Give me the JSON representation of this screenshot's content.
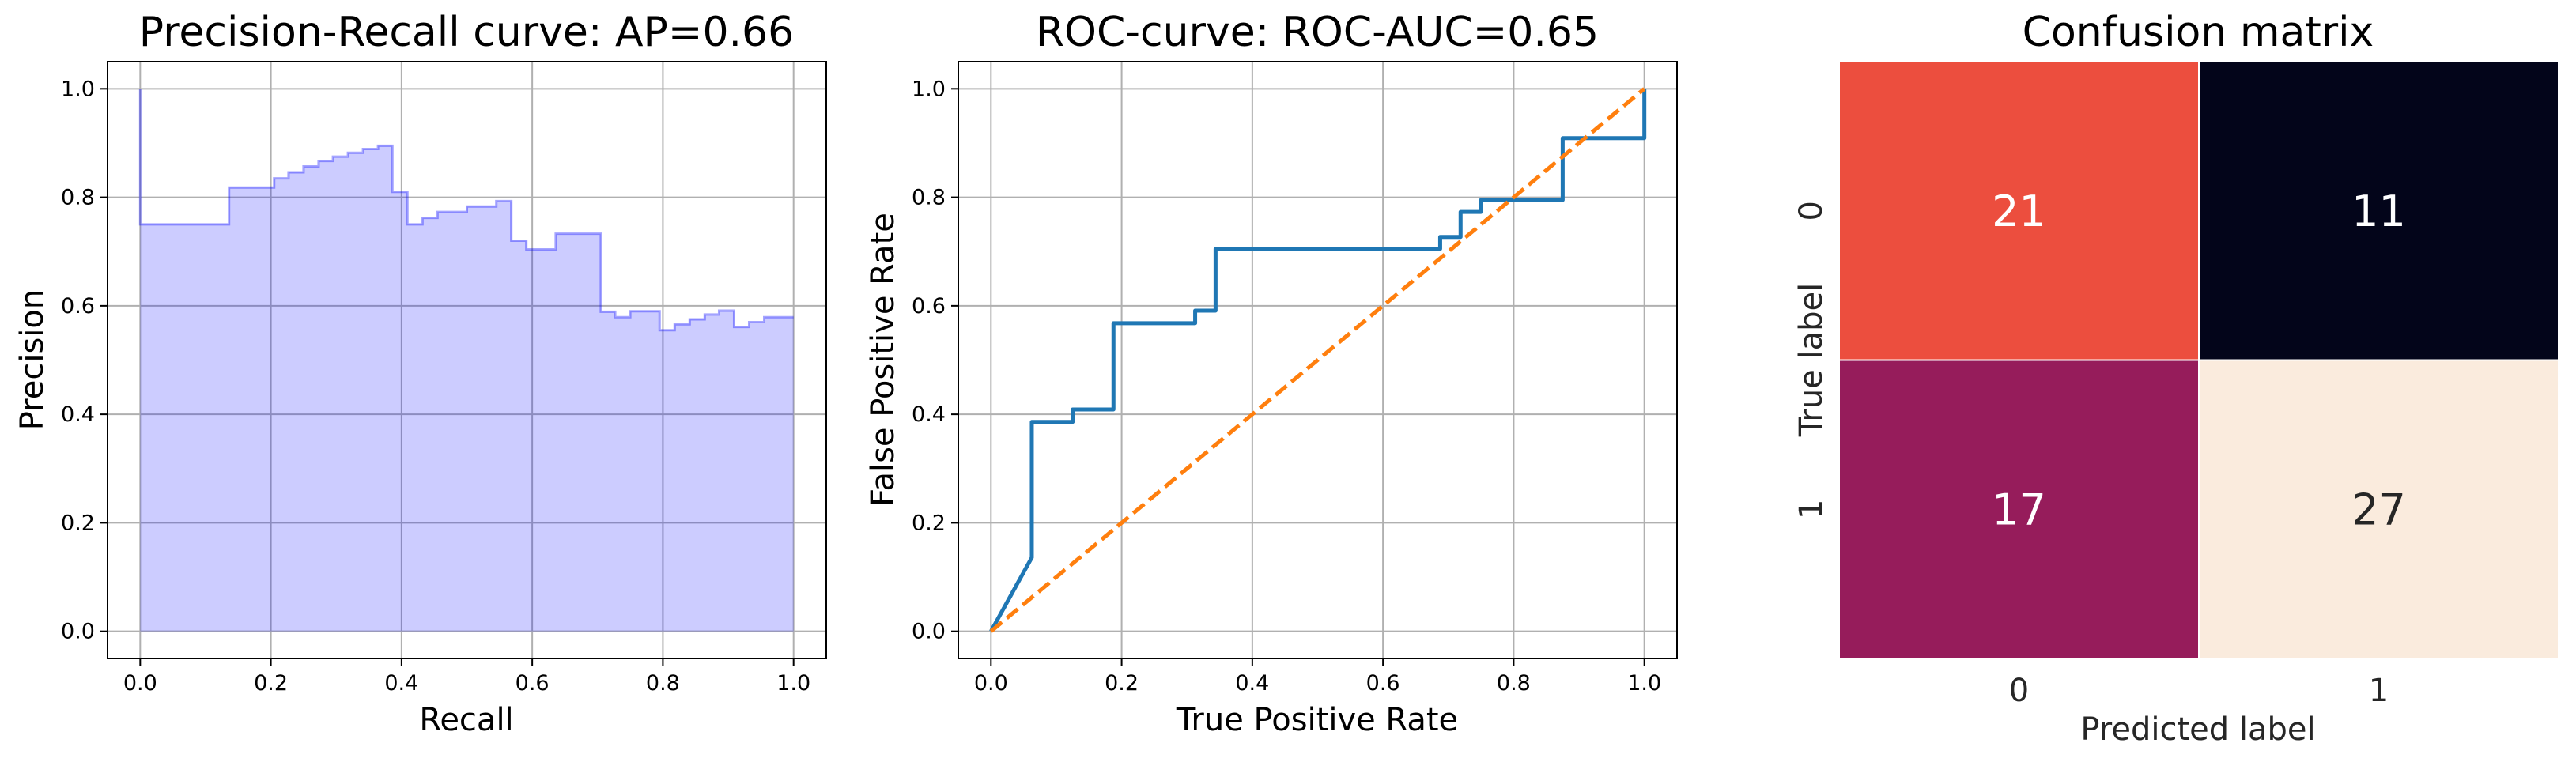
{
  "chart_data": [
    {
      "type": "area",
      "title": "Precision-Recall curve: AP=0.66",
      "xlabel": "Recall",
      "ylabel": "Precision",
      "xlim": [
        -0.05,
        1.05
      ],
      "ylim": [
        -0.05,
        1.05
      ],
      "grid": true,
      "color": "#0000ff",
      "fill_opacity": 0.2,
      "step": "post",
      "xticks": [
        0.0,
        0.2,
        0.4,
        0.6,
        0.8,
        1.0
      ],
      "yticks": [
        0.0,
        0.2,
        0.4,
        0.6,
        0.8,
        1.0
      ],
      "xtick_labels": [
        "0.0",
        "0.2",
        "0.4",
        "0.6",
        "0.8",
        "1.0"
      ],
      "ytick_labels": [
        "0.0",
        "0.2",
        "0.4",
        "0.6",
        "0.8",
        "1.0"
      ],
      "x": [
        0.0,
        0.0,
        0.136,
        0.136,
        0.205,
        0.205,
        0.227,
        0.227,
        0.25,
        0.25,
        0.273,
        0.273,
        0.295,
        0.295,
        0.318,
        0.318,
        0.341,
        0.341,
        0.364,
        0.364,
        0.386,
        0.386,
        0.386,
        0.409,
        0.409,
        0.432,
        0.432,
        0.455,
        0.455,
        0.5,
        0.5,
        0.545,
        0.545,
        0.568,
        0.568,
        0.591,
        0.591,
        0.636,
        0.636,
        0.705,
        0.705,
        0.727,
        0.727,
        0.75,
        0.75,
        0.795,
        0.795,
        0.818,
        0.818,
        0.841,
        0.841,
        0.864,
        0.864,
        0.886,
        0.886,
        0.909,
        0.909,
        0.932,
        0.932,
        0.955,
        0.955,
        1.0
      ],
      "y": [
        1.0,
        0.75,
        0.75,
        0.818,
        0.818,
        0.835,
        0.835,
        0.846,
        0.846,
        0.857,
        0.857,
        0.867,
        0.867,
        0.875,
        0.875,
        0.882,
        0.882,
        0.889,
        0.889,
        0.895,
        0.895,
        0.81,
        0.81,
        0.81,
        0.75,
        0.75,
        0.762,
        0.762,
        0.773,
        0.773,
        0.783,
        0.783,
        0.793,
        0.793,
        0.72,
        0.72,
        0.704,
        0.704,
        0.733,
        0.733,
        0.589,
        0.589,
        0.579,
        0.579,
        0.59,
        0.59,
        0.555,
        0.555,
        0.566,
        0.566,
        0.575,
        0.575,
        0.584,
        0.584,
        0.591,
        0.591,
        0.561,
        0.561,
        0.57,
        0.57,
        0.579,
        0.579
      ]
    },
    {
      "type": "line",
      "title": "ROC-curve: ROC-AUC=0.65",
      "xlabel": "True Positive Rate",
      "ylabel": "False Positive Rate",
      "xlim": [
        -0.05,
        1.05
      ],
      "ylim": [
        -0.05,
        1.05
      ],
      "grid": true,
      "xticks": [
        0.0,
        0.2,
        0.4,
        0.6,
        0.8,
        1.0
      ],
      "yticks": [
        0.0,
        0.2,
        0.4,
        0.6,
        0.8,
        1.0
      ],
      "xtick_labels": [
        "0.0",
        "0.2",
        "0.4",
        "0.6",
        "0.8",
        "1.0"
      ],
      "ytick_labels": [
        "0.0",
        "0.2",
        "0.4",
        "0.6",
        "0.8",
        "1.0"
      ],
      "series": [
        {
          "color": "#1f77b4",
          "dashed": false,
          "x": [
            0.0,
            0.0625,
            0.0625,
            0.125,
            0.125,
            0.1875,
            0.1875,
            0.3125,
            0.3125,
            0.34375,
            0.34375,
            0.6875,
            0.6875,
            0.71875,
            0.71875,
            0.75,
            0.75,
            0.875,
            0.875,
            1.0,
            1.0
          ],
          "y": [
            0.0,
            0.136,
            0.386,
            0.386,
            0.409,
            0.409,
            0.568,
            0.568,
            0.591,
            0.591,
            0.705,
            0.705,
            0.727,
            0.727,
            0.773,
            0.773,
            0.795,
            0.795,
            0.909,
            0.909,
            1.0
          ]
        },
        {
          "color": "#ff7f0e",
          "dashed": true,
          "x": [
            0.0,
            1.0
          ],
          "y": [
            0.0,
            1.0
          ]
        }
      ]
    },
    {
      "type": "heatmap",
      "title": "Confusion matrix",
      "xlabel": "Predicted label",
      "ylabel": "True label",
      "x_categories": [
        "0",
        "1"
      ],
      "y_categories": [
        "0",
        "1"
      ],
      "values": [
        [
          21,
          11
        ],
        [
          17,
          27
        ]
      ],
      "cell_colors": [
        [
          "#ec4e3e",
          "#03051a"
        ],
        [
          "#961c5b",
          "#faebdd"
        ]
      ],
      "text_colors": [
        [
          "#ffffff",
          "#ffffff"
        ],
        [
          "#ffffff",
          "#262626"
        ]
      ]
    }
  ]
}
